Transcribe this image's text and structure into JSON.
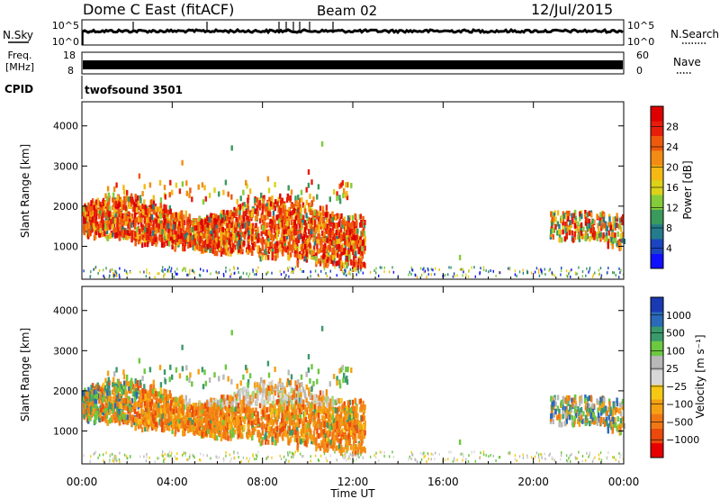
{
  "header": {
    "station": "Dome C East (fitACF)",
    "beam": "Beam 02",
    "date": "12/Jul/2015"
  },
  "strip": {
    "nsky_label": "N.Sky",
    "nsky_ticks": [
      "10^5",
      "10^0"
    ],
    "nsearch_label": "N.Search",
    "nsearch_ticks": [
      "10^5",
      "10^0"
    ],
    "freq_label": "Freq.",
    "freq_unit": "[MHz]",
    "freq_ticks": [
      "18",
      "8"
    ],
    "nave_label": "Nave",
    "nave_ticks": [
      "60",
      "0"
    ],
    "cpid_label": "CPID",
    "cpid_value": "twofsound 3501"
  },
  "chart_data": [
    {
      "type": "heatmap",
      "name": "power",
      "xlabel": "Time UT",
      "ylabel": "Slant Range [km]",
      "xlim": [
        0,
        24
      ],
      "ylim": [
        180,
        4600
      ],
      "y_ticks": [
        1000,
        2000,
        3000,
        4000
      ],
      "colorbar_label": "Power [dB]",
      "colorbar_ticks": [
        "4",
        "8",
        "12",
        "16",
        "20",
        "24",
        "28"
      ],
      "colorbar_colors": [
        "#1010ff",
        "#1a44c0",
        "#247c8c",
        "#3a9a5c",
        "#84cc3a",
        "#dcd21a",
        "#f5b814",
        "#f28c14",
        "#ee5a0c",
        "#e61e0c",
        "#dc0000"
      ],
      "scatter_regions": [
        {
          "t": [
            0.0,
            12.5
          ],
          "r": [
            400,
            2300
          ],
          "dominant": "high"
        },
        {
          "t": [
            20.7,
            24.0
          ],
          "r": [
            900,
            2000
          ],
          "dominant": "mixed"
        },
        {
          "t": [
            0.0,
            24.0
          ],
          "r": [
            200,
            500
          ],
          "dominant": "low"
        }
      ]
    },
    {
      "type": "heatmap",
      "name": "velocity",
      "xlabel": "Time UT",
      "ylabel": "Slant Range [km]",
      "xlim": [
        0,
        24
      ],
      "ylim": [
        180,
        4600
      ],
      "y_ticks": [
        1000,
        2000,
        3000,
        4000
      ],
      "x_ticks": [
        "00:00",
        "04:00",
        "08:00",
        "12:00",
        "16:00",
        "20:00",
        "00:00"
      ],
      "colorbar_label": "Velocity [m s⁻¹]",
      "colorbar_ticks": [
        "1000",
        "500",
        "100",
        "25",
        "−25",
        "−100",
        "−500",
        "−1000"
      ],
      "colorbar_colors": [
        "#1a3ab4",
        "#2a6ab8",
        "#3a9a6c",
        "#6cc840",
        "#b8b8b8",
        "#d8d8d8",
        "#f5c814",
        "#f5a014",
        "#f07814",
        "#ec4a0c",
        "#e60000"
      ],
      "scatter_regions": [
        {
          "t": [
            0.0,
            12.5
          ],
          "r": [
            400,
            2300
          ],
          "dominant": "negative"
        },
        {
          "t": [
            5.0,
            11.0
          ],
          "r": [
            1600,
            2100
          ],
          "dominant": "near-zero"
        },
        {
          "t": [
            20.7,
            24.0
          ],
          "r": [
            900,
            2000
          ],
          "dominant": "mixed"
        }
      ]
    }
  ]
}
